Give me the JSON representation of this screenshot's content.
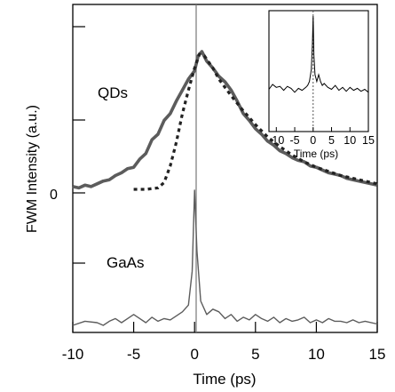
{
  "chart_data": [
    {
      "type": "line",
      "xlabel": "Time (ps)",
      "ylabel": "FWM Intensity (a.u.)",
      "xlim": [
        -10,
        15
      ],
      "xticks": [
        -10,
        -5,
        0,
        5,
        10,
        15
      ],
      "y_zero_label": "0",
      "annotations": [
        "QDs",
        "GaAs"
      ],
      "colors": {
        "measured": "#5c5c5c",
        "fit": "#222222",
        "axis": "#000000",
        "zero_line": "#777777"
      },
      "series": [
        {
          "panel": "QDs",
          "line_style": "thick-solid",
          "x": [
            -10,
            -9.5,
            -9,
            -8.5,
            -8,
            -7.5,
            -7,
            -6.5,
            -6,
            -5.5,
            -5,
            -4.5,
            -4,
            -3.5,
            -3,
            -2.5,
            -2,
            -1.5,
            -1,
            -0.5,
            0,
            0.3,
            0.6,
            1,
            1.5,
            2,
            2.5,
            3,
            3.5,
            4,
            4.5,
            5,
            5.5,
            6,
            6.5,
            7,
            7.5,
            8,
            8.5,
            9,
            9.5,
            10,
            10.5,
            11,
            11.5,
            12,
            12.5,
            13,
            13.5,
            14,
            14.5,
            15
          ],
          "y": [
            0.02,
            0.01,
            0.03,
            0.02,
            0.04,
            0.06,
            0.07,
            0.1,
            0.12,
            0.15,
            0.16,
            0.22,
            0.26,
            0.36,
            0.4,
            0.5,
            0.55,
            0.64,
            0.72,
            0.8,
            0.86,
            0.97,
            1.0,
            0.93,
            0.88,
            0.82,
            0.78,
            0.72,
            0.64,
            0.55,
            0.5,
            0.44,
            0.4,
            0.35,
            0.32,
            0.28,
            0.26,
            0.23,
            0.21,
            0.2,
            0.17,
            0.16,
            0.14,
            0.12,
            0.11,
            0.1,
            0.08,
            0.07,
            0.06,
            0.05,
            0.04,
            0.03
          ]
        },
        {
          "panel": "QDs",
          "line_style": "dotted",
          "x": [
            -5,
            -4.5,
            -4,
            -3,
            -2.5,
            -2,
            -1.5,
            -1,
            -0.5,
            0,
            0.4,
            0.8,
            1.5,
            2,
            3,
            4,
            5,
            6,
            7,
            8,
            9,
            10,
            11,
            12,
            13,
            14,
            15
          ],
          "y": [
            0,
            0,
            0,
            0.01,
            0.05,
            0.17,
            0.34,
            0.55,
            0.72,
            0.88,
            0.98,
            0.97,
            0.88,
            0.8,
            0.68,
            0.57,
            0.47,
            0.38,
            0.31,
            0.25,
            0.2,
            0.16,
            0.13,
            0.1,
            0.08,
            0.06,
            0.04
          ]
        },
        {
          "panel": "GaAs",
          "line_style": "thin-solid",
          "x": [
            -10,
            -9,
            -8,
            -7.5,
            -7,
            -6.5,
            -6,
            -5.5,
            -5,
            -4.5,
            -4,
            -3.5,
            -3,
            -2.5,
            -2,
            -1.5,
            -1,
            -0.5,
            -0.2,
            0,
            0.2,
            0.5,
            1,
            1.5,
            2,
            2.5,
            3,
            3.5,
            4,
            4.5,
            5,
            5.5,
            6,
            6.5,
            7,
            7.5,
            8,
            8.5,
            9,
            9.5,
            10,
            10.5,
            11,
            11.5,
            12,
            12.5,
            13,
            13.5,
            14,
            15
          ],
          "y": [
            0.0,
            0.03,
            0.02,
            0.0,
            0.03,
            0.05,
            0.02,
            0.05,
            0.08,
            0.05,
            0.02,
            0.06,
            0.03,
            0.05,
            0.04,
            0.07,
            0.1,
            0.15,
            0.4,
            1.0,
            0.55,
            0.18,
            0.08,
            0.12,
            0.1,
            0.05,
            0.08,
            0.03,
            0.06,
            0.04,
            0.08,
            0.05,
            0.03,
            0.06,
            0.02,
            0.05,
            0.03,
            0.04,
            0.06,
            0.02,
            0.04,
            0.02,
            0.05,
            0.03,
            0.03,
            0.02,
            0.04,
            0.02,
            0.03,
            0.01
          ]
        }
      ]
    },
    {
      "type": "line",
      "xlabel": "Time (ps)",
      "xlim": [
        -12,
        15
      ],
      "xticks": [
        -10,
        -5,
        0,
        5,
        10,
        15
      ],
      "series": [
        {
          "line_style": "thin-solid",
          "x": [
            -12,
            -11,
            -10,
            -9,
            -8,
            -7,
            -6,
            -5,
            -4,
            -3,
            -2,
            -1.5,
            -1,
            -0.5,
            -0.2,
            0,
            0.2,
            0.5,
            1,
            1.5,
            2,
            2.5,
            3,
            4,
            5,
            6,
            7,
            8,
            9,
            10,
            11,
            12,
            13,
            14,
            15
          ],
          "y": [
            0.25,
            0.3,
            0.27,
            0.28,
            0.24,
            0.28,
            0.26,
            0.22,
            0.26,
            0.24,
            0.27,
            0.29,
            0.33,
            0.45,
            0.7,
            1.0,
            0.6,
            0.4,
            0.33,
            0.4,
            0.33,
            0.29,
            0.31,
            0.27,
            0.25,
            0.29,
            0.24,
            0.27,
            0.23,
            0.27,
            0.24,
            0.26,
            0.23,
            0.25,
            0.22
          ]
        }
      ]
    }
  ]
}
